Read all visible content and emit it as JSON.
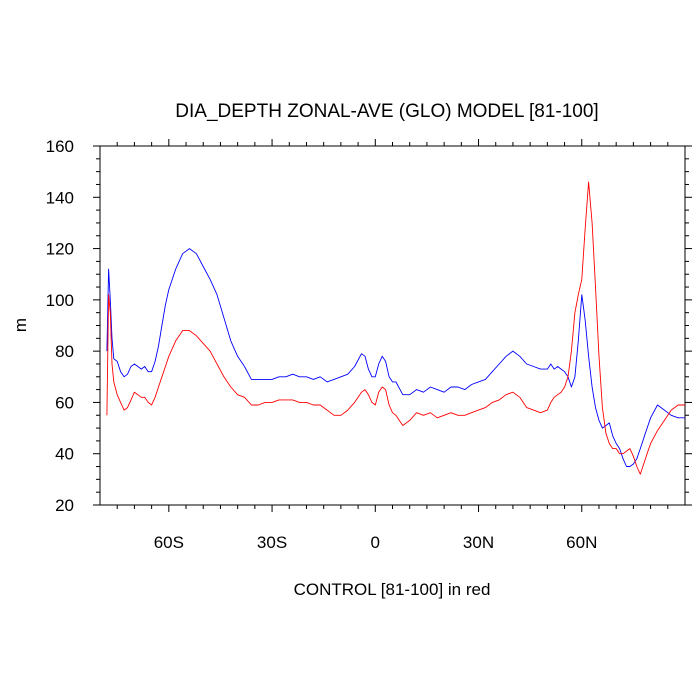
{
  "chart_data": {
    "type": "line",
    "title": "DIA_DEPTH ZONAL-AVE (GLO) MODEL [81-100]",
    "xlabel": "CONTROL [81-100] in red",
    "ylabel": "m",
    "xlim": [
      -80,
      90
    ],
    "ylim": [
      20,
      160
    ],
    "y_ticks": [
      20,
      40,
      60,
      80,
      100,
      120,
      140,
      160
    ],
    "x_ticks": [
      {
        "value": -60,
        "label": "60S"
      },
      {
        "value": -30,
        "label": "30S"
      },
      {
        "value": 0,
        "label": "0"
      },
      {
        "value": 30,
        "label": "30N"
      },
      {
        "value": 60,
        "label": "60N"
      }
    ],
    "grid": false,
    "series": [
      {
        "color": "#0000ff",
        "x": [
          -78,
          -77.5,
          -77,
          -76.5,
          -76,
          -75,
          -74,
          -73,
          -72,
          -71,
          -70,
          -69,
          -68,
          -67,
          -66,
          -65,
          -64,
          -63,
          -62,
          -61,
          -60,
          -58,
          -56,
          -54,
          -52,
          -50,
          -48,
          -46,
          -44,
          -42,
          -40,
          -38,
          -36,
          -34,
          -32,
          -30,
          -28,
          -26,
          -24,
          -22,
          -20,
          -18,
          -16,
          -14,
          -12,
          -10,
          -8,
          -6,
          -4,
          -3,
          -2,
          -1,
          0,
          1,
          2,
          3,
          4,
          5,
          6,
          8,
          10,
          12,
          14,
          16,
          18,
          20,
          22,
          24,
          26,
          28,
          30,
          32,
          34,
          36,
          38,
          40,
          42,
          44,
          46,
          48,
          50,
          51,
          52,
          53,
          54,
          55,
          56,
          57,
          58,
          59,
          60,
          61,
          62,
          63,
          64,
          65,
          66,
          67,
          68,
          69,
          70,
          71,
          72,
          73,
          74,
          75,
          76,
          77,
          78,
          79,
          80,
          82,
          84,
          86,
          88,
          90
        ],
        "values": [
          80,
          112,
          100,
          85,
          77,
          76,
          72,
          70,
          71,
          74,
          75,
          74,
          73,
          74,
          72,
          72,
          76,
          82,
          90,
          98,
          104,
          112,
          118,
          120,
          118,
          113,
          108,
          102,
          93,
          84,
          78,
          74,
          69,
          69,
          69,
          69,
          70,
          70,
          71,
          70,
          70,
          69,
          70,
          68,
          69,
          70,
          71,
          74,
          79,
          78,
          73,
          70,
          70,
          75,
          78,
          76,
          70,
          68,
          68,
          63,
          63,
          65,
          64,
          66,
          65,
          64,
          66,
          66,
          65,
          67,
          68,
          69,
          72,
          75,
          78,
          80,
          78,
          75,
          74,
          73,
          73,
          75,
          73,
          74,
          73,
          72,
          70,
          66,
          70,
          84,
          102,
          92,
          78,
          66,
          58,
          53,
          50,
          51,
          52,
          47,
          44,
          42,
          38,
          35,
          35,
          36,
          38,
          42,
          46,
          50,
          54,
          59,
          57,
          55,
          54,
          54
        ]
      },
      {
        "color": "#ff0000",
        "x": [
          -78,
          -77.5,
          -77,
          -76.5,
          -76,
          -75,
          -74,
          -73,
          -72,
          -71,
          -70,
          -69,
          -68,
          -67,
          -66,
          -65,
          -64,
          -63,
          -62,
          -61,
          -60,
          -58,
          -56,
          -54,
          -52,
          -50,
          -48,
          -46,
          -44,
          -42,
          -40,
          -38,
          -36,
          -34,
          -32,
          -30,
          -28,
          -26,
          -24,
          -22,
          -20,
          -18,
          -16,
          -14,
          -12,
          -10,
          -8,
          -6,
          -4,
          -3,
          -2,
          -1,
          0,
          1,
          2,
          3,
          4,
          5,
          6,
          8,
          10,
          12,
          14,
          16,
          18,
          20,
          22,
          24,
          26,
          28,
          30,
          32,
          34,
          36,
          38,
          40,
          42,
          44,
          46,
          48,
          50,
          51,
          52,
          53,
          54,
          55,
          56,
          57,
          58,
          59,
          60,
          61,
          62,
          63,
          64,
          65,
          66,
          67,
          68,
          69,
          70,
          71,
          72,
          73,
          74,
          75,
          76,
          77,
          78,
          79,
          80,
          82,
          84,
          86,
          88,
          90
        ],
        "values": [
          55,
          102,
          95,
          75,
          68,
          63,
          60,
          57,
          58,
          61,
          64,
          63,
          62,
          62,
          60,
          59,
          62,
          66,
          70,
          74,
          78,
          84,
          88,
          88,
          86,
          83,
          80,
          75,
          70,
          66,
          63,
          62,
          59,
          59,
          60,
          60,
          61,
          61,
          61,
          60,
          60,
          59,
          59,
          57,
          55,
          55,
          57,
          60,
          64,
          65,
          63,
          60,
          59,
          64,
          66,
          65,
          59,
          56,
          55,
          51,
          53,
          56,
          55,
          56,
          54,
          55,
          56,
          55,
          55,
          56,
          57,
          58,
          60,
          61,
          63,
          64,
          62,
          58,
          57,
          56,
          57,
          60,
          62,
          63,
          64,
          66,
          70,
          80,
          95,
          102,
          108,
          128,
          146,
          130,
          105,
          78,
          58,
          48,
          44,
          42,
          42,
          40,
          40,
          41,
          42,
          39,
          35,
          32,
          36,
          40,
          44,
          49,
          53,
          57,
          59,
          59
        ]
      }
    ]
  }
}
